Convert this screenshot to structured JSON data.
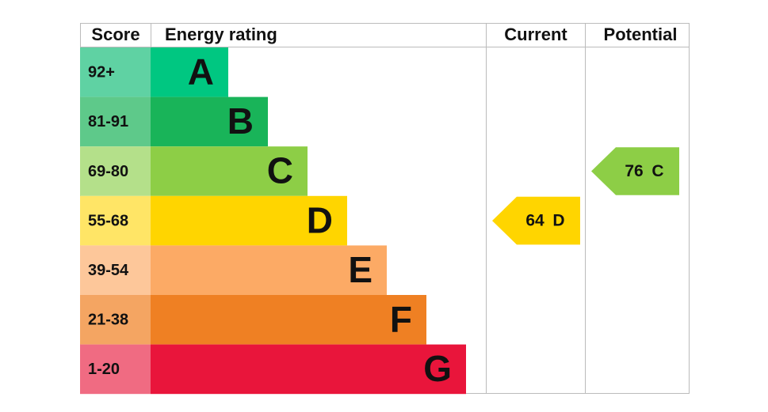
{
  "header": {
    "score": "Score",
    "rating": "Energy rating",
    "current": "Current",
    "potential": "Potential"
  },
  "bands": [
    {
      "score": "92+",
      "letter": "A",
      "color": "#00c781",
      "light": "#5fd2a3"
    },
    {
      "score": "81-91",
      "letter": "B",
      "color": "#19b459",
      "light": "#5ec98a"
    },
    {
      "score": "69-80",
      "letter": "C",
      "color": "#8dce46",
      "light": "#b4e08a"
    },
    {
      "score": "55-68",
      "letter": "D",
      "color": "#ffd500",
      "light": "#ffe566"
    },
    {
      "score": "39-54",
      "letter": "E",
      "color": "#fcaa65",
      "light": "#fdc79a"
    },
    {
      "score": "21-38",
      "letter": "F",
      "color": "#ef8023",
      "light": "#f4a562"
    },
    {
      "score": "1-20",
      "letter": "G",
      "color": "#e9153b",
      "light": "#f06b82"
    }
  ],
  "current": {
    "score": 64,
    "rating": "D"
  },
  "potential": {
    "score": 76,
    "rating": "C"
  }
}
